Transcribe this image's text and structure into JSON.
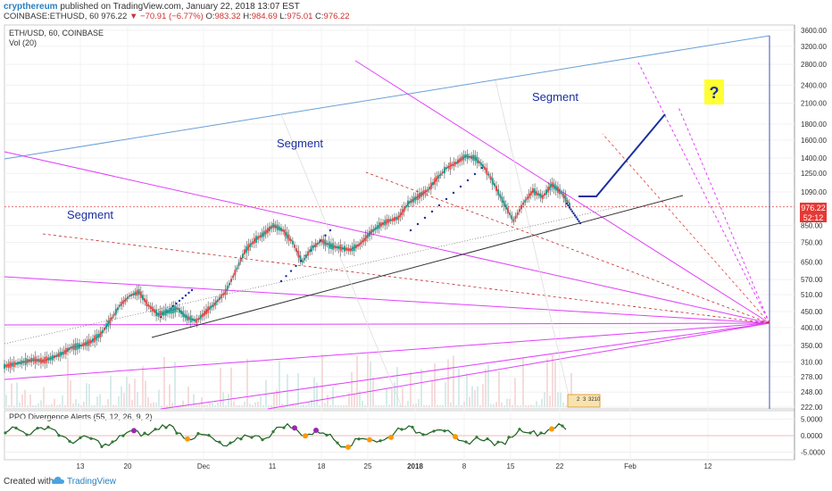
{
  "header": {
    "author": "crypthereum",
    "published_text": "published on TradingView.com, January 22, 2018 13:07 EST",
    "symbol_line": {
      "symbol": "COINBASE:ETHUSD, 60",
      "last": "976.22",
      "change": "−70.91 (−6.77%)",
      "open_label": "O:",
      "open": "983.32",
      "high_label": "H:",
      "high": "984.69",
      "low_label": "L:",
      "low": "975.01",
      "close_label": "C:",
      "close": "976.22"
    }
  },
  "chart": {
    "pane_title": "ETH/USD, 60, COINBASE",
    "vol_label": "Vol (20)",
    "price_badge": "976.22",
    "countdown_badge": "52:12",
    "annotations": {
      "segment_1": "Segment",
      "segment_2": "Segment",
      "segment_3": "Segment",
      "question": "?"
    },
    "volume_labels": [
      "2",
      "3",
      "3210"
    ],
    "ppo_title": "PPO Divergence Alerts (55, 12, 26, 9, 2)"
  },
  "chart_data": [
    {
      "type": "line",
      "title": "ETH/USD, 60, COINBASE",
      "x_tick_labels": [
        "13",
        "20",
        "Dec",
        "11",
        "18",
        "25",
        "2018",
        "8",
        "15",
        "22",
        "Feb",
        "12"
      ],
      "y_tick_labels": [
        "3600.00",
        "3200.00",
        "2800.00",
        "2400.00",
        "2100.00",
        "1800.00",
        "1600.00",
        "1400.00",
        "1250.00",
        "1090.00",
        "976.22",
        "850.00",
        "750.00",
        "650.00",
        "570.00",
        "510.00",
        "450.00",
        "400.00",
        "350.00",
        "310.00",
        "278.00",
        "248.00",
        "222.00"
      ],
      "y_scale": "log",
      "ylim": [
        222,
        3600
      ],
      "series": [
        {
          "values": [
            300,
            305,
            310,
            315,
            312,
            320,
            330,
            345,
            350,
            360,
            380,
            420,
            470,
            505,
            520,
            470,
            440,
            450,
            460,
            430,
            420,
            450,
            480,
            520,
            600,
            700,
            760,
            800,
            850,
            820,
            750,
            650,
            720,
            760,
            730,
            720,
            710,
            740,
            800,
            850,
            880,
            900,
            1000,
            1050,
            1100,
            1200,
            1300,
            1350,
            1420,
            1400,
            1300,
            1150,
            1000,
            880,
            1000,
            1100,
            1050,
            1150,
            1080,
            976
          ]
        }
      ]
    },
    {
      "type": "line",
      "title": "PPO Divergence Alerts (55, 12, 26, 9, 2)",
      "y_tick_labels": [
        "5.0000",
        "0.0000",
        "-5.0000"
      ],
      "ylim": [
        -7,
        7
      ]
    }
  ]
}
